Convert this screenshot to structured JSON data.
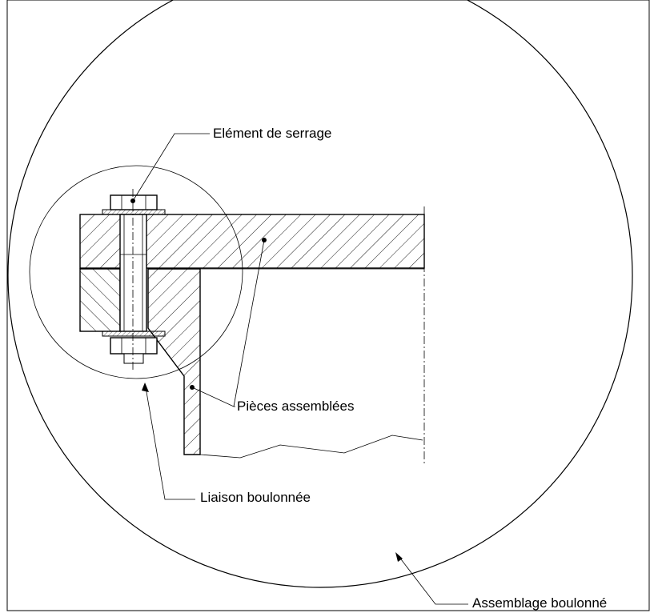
{
  "labels": {
    "clamping_element": "Elément de serrage",
    "assembled_parts": "Pièces assemblées",
    "bolted_joint": "Liaison boulonnée",
    "bolted_assembly": "Assemblage boulonné"
  }
}
